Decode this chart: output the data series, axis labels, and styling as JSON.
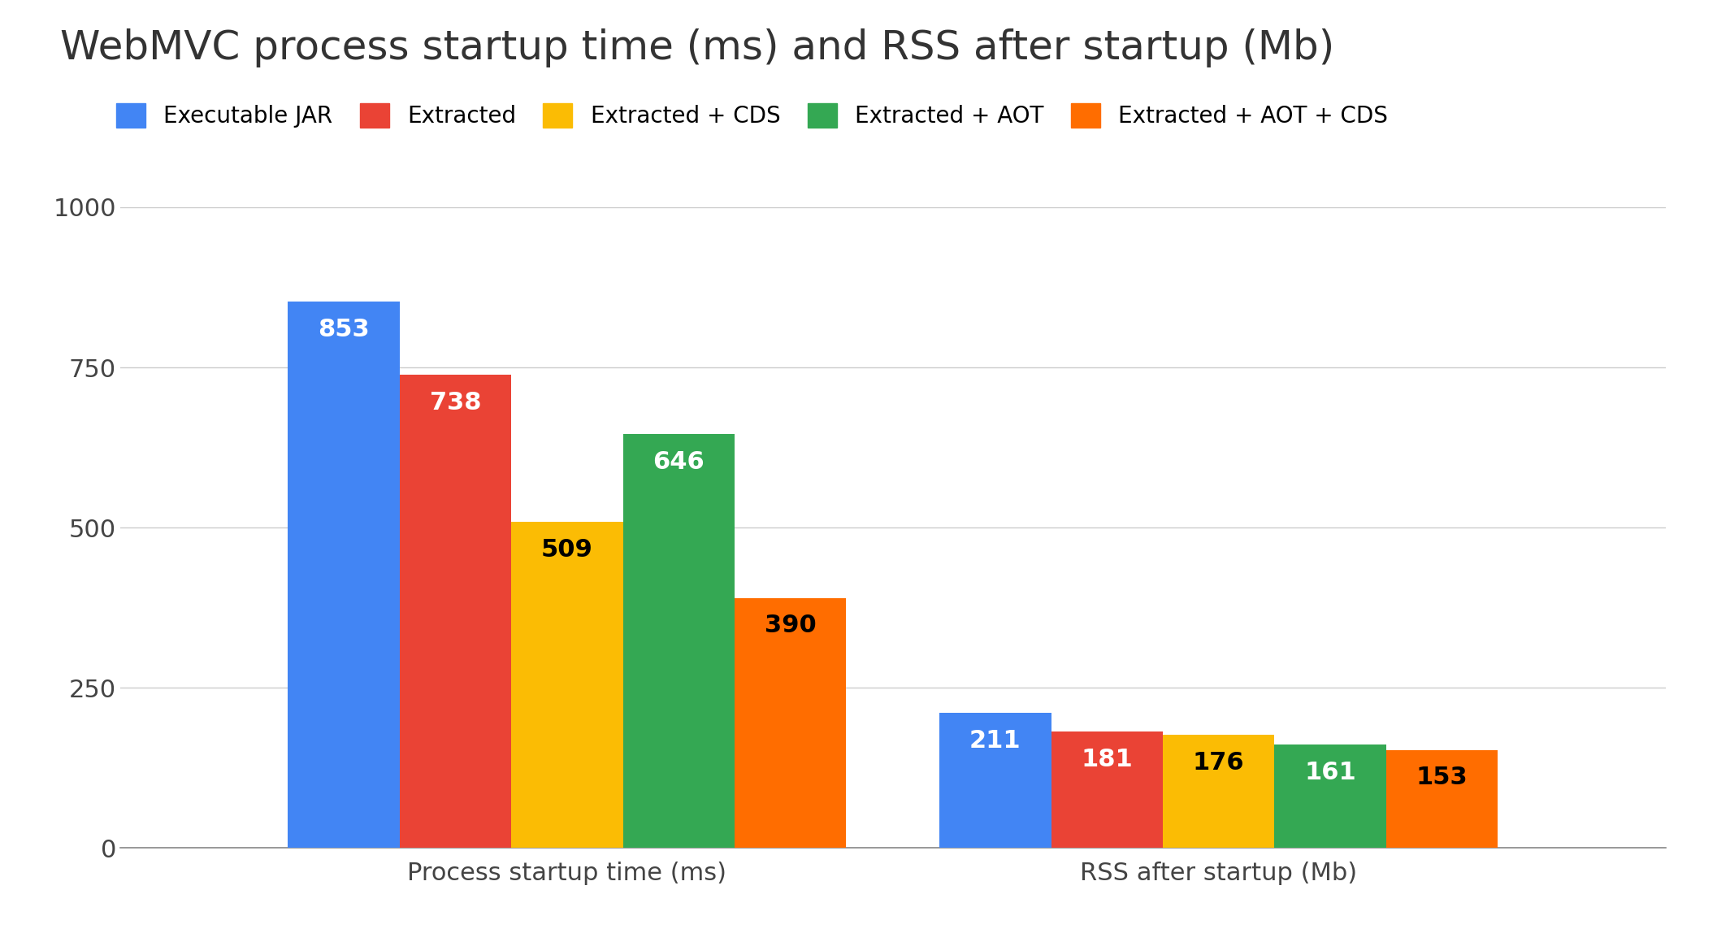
{
  "title": "WebMVC process startup time (ms) and RSS after startup (Mb)",
  "categories": [
    "Process startup time (ms)",
    "RSS after startup (Mb)"
  ],
  "series": [
    {
      "label": "Executable JAR",
      "color": "#4285F4",
      "label_color": "white",
      "values": [
        853,
        211
      ]
    },
    {
      "label": "Extracted",
      "color": "#EA4335",
      "label_color": "white",
      "values": [
        738,
        181
      ]
    },
    {
      "label": "Extracted + CDS",
      "color": "#FBBC04",
      "label_color": "black",
      "values": [
        509,
        176
      ]
    },
    {
      "label": "Extracted + AOT",
      "color": "#34A853",
      "label_color": "white",
      "values": [
        646,
        161
      ]
    },
    {
      "label": "Extracted + AOT + CDS",
      "color": "#FF6D00",
      "label_color": "black",
      "values": [
        390,
        153
      ]
    }
  ],
  "ylim": [
    0,
    1000
  ],
  "yticks": [
    0,
    250,
    500,
    750,
    1000
  ],
  "background_color": "#ffffff",
  "title_fontsize": 36,
  "legend_fontsize": 20,
  "label_fontsize": 22,
  "bar_label_fontsize": 22,
  "tick_fontsize": 22,
  "group_centers": [
    0.35,
    1.05
  ],
  "bar_width": 0.12,
  "bar_spacing": 0.0
}
